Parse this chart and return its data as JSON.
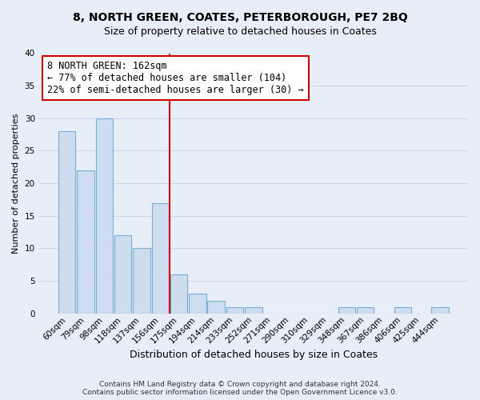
{
  "title": "8, NORTH GREEN, COATES, PETERBOROUGH, PE7 2BQ",
  "subtitle": "Size of property relative to detached houses in Coates",
  "xlabel": "Distribution of detached houses by size in Coates",
  "ylabel": "Number of detached properties",
  "bar_labels": [
    "60sqm",
    "79sqm",
    "98sqm",
    "118sqm",
    "137sqm",
    "156sqm",
    "175sqm",
    "194sqm",
    "214sqm",
    "233sqm",
    "252sqm",
    "271sqm",
    "290sqm",
    "310sqm",
    "329sqm",
    "348sqm",
    "367sqm",
    "386sqm",
    "406sqm",
    "425sqm",
    "444sqm"
  ],
  "bar_values": [
    28,
    22,
    30,
    12,
    10,
    17,
    6,
    3,
    2,
    1,
    1,
    0,
    0,
    0,
    0,
    1,
    1,
    0,
    1,
    0,
    1
  ],
  "bar_color": "#cddcee",
  "bar_edge_color": "#7aadd4",
  "grid_color": "#c8d4e8",
  "bg_color": "#e8eef8",
  "vline_x": 5.5,
  "vline_color": "#cc0000",
  "annotation_text": "8 NORTH GREEN: 162sqm\n← 77% of detached houses are smaller (104)\n22% of semi-detached houses are larger (30) →",
  "annotation_box_color": "#ffffff",
  "annotation_border_color": "#cc0000",
  "ylim": [
    0,
    40
  ],
  "yticks": [
    0,
    5,
    10,
    15,
    20,
    25,
    30,
    35,
    40
  ],
  "footer_line1": "Contains HM Land Registry data © Crown copyright and database right 2024.",
  "footer_line2": "Contains public sector information licensed under the Open Government Licence v3.0.",
  "title_fontsize": 10,
  "subtitle_fontsize": 9,
  "xlabel_fontsize": 9,
  "ylabel_fontsize": 8,
  "tick_fontsize": 7.5,
  "annotation_fontsize": 8.5,
  "footer_fontsize": 6.5
}
